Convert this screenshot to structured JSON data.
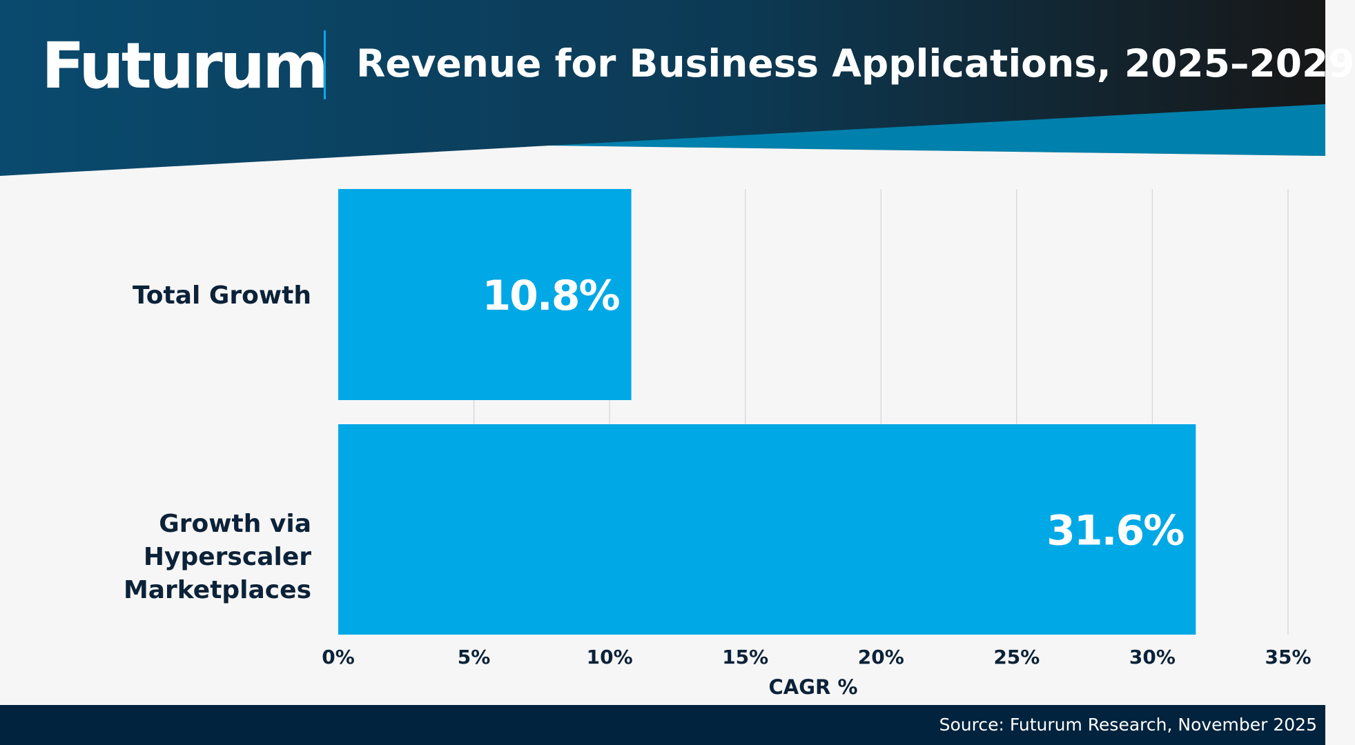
{
  "header": {
    "logo": "Futurum",
    "title": "Revenue for Business Applications, 2025–2029"
  },
  "colors": {
    "bar": "#00a8e6",
    "header_dark": "#0a4a6e",
    "header_black": "#161a1d",
    "accent_teal": "#0080ac",
    "footer": "#01233d",
    "text": "#0c2238"
  },
  "chart_data": {
    "type": "bar",
    "orientation": "horizontal",
    "categories": [
      "Total Growth",
      "Growth via Hyperscaler Marketplaces"
    ],
    "category_lines": [
      [
        "Total Growth"
      ],
      [
        "Growth via Hyperscaler",
        "Marketplaces"
      ]
    ],
    "values": [
      10.8,
      31.6
    ],
    "data_labels": [
      "10.8%",
      "31.6%"
    ],
    "xlabel": "CAGR %",
    "xlim": [
      0,
      35
    ],
    "xticks": [
      0,
      5,
      10,
      15,
      20,
      25,
      30,
      35
    ],
    "xtick_labels": [
      "0%",
      "5%",
      "10%",
      "15%",
      "20%",
      "25%",
      "30%",
      "35%"
    ],
    "grid": "vertical",
    "legend": "none"
  },
  "footer": {
    "source": "Source: Futurum Research, November 2025"
  }
}
